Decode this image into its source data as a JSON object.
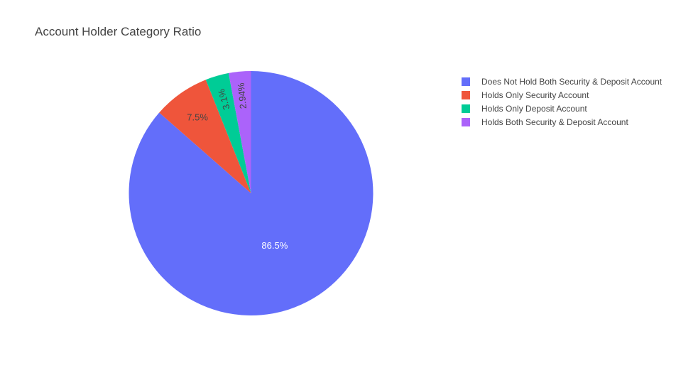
{
  "title": "Account Holder Category Ratio",
  "chart_data": {
    "type": "pie",
    "title": "Account Holder Category Ratio",
    "direction": "clockwise",
    "start_angle": "12 o'clock",
    "legend_position": "top-right",
    "slices": [
      {
        "label": "Does Not Hold Both Security & Deposit Account",
        "value": 86.5,
        "text": "86.5%",
        "color": "#636efa",
        "text_color": "#ffffff"
      },
      {
        "label": "Holds Only Security Account",
        "value": 7.5,
        "text": "7.5%",
        "color": "#ef553b",
        "text_color": "#444444"
      },
      {
        "label": "Holds Only Deposit Account",
        "value": 3.1,
        "text": "3.1%",
        "color": "#00cc96",
        "text_color": "#444444"
      },
      {
        "label": "Holds Both Security & Deposit Account",
        "value": 2.94,
        "text": "2.94%",
        "color": "#ab63fa",
        "text_color": "#444444"
      }
    ]
  }
}
